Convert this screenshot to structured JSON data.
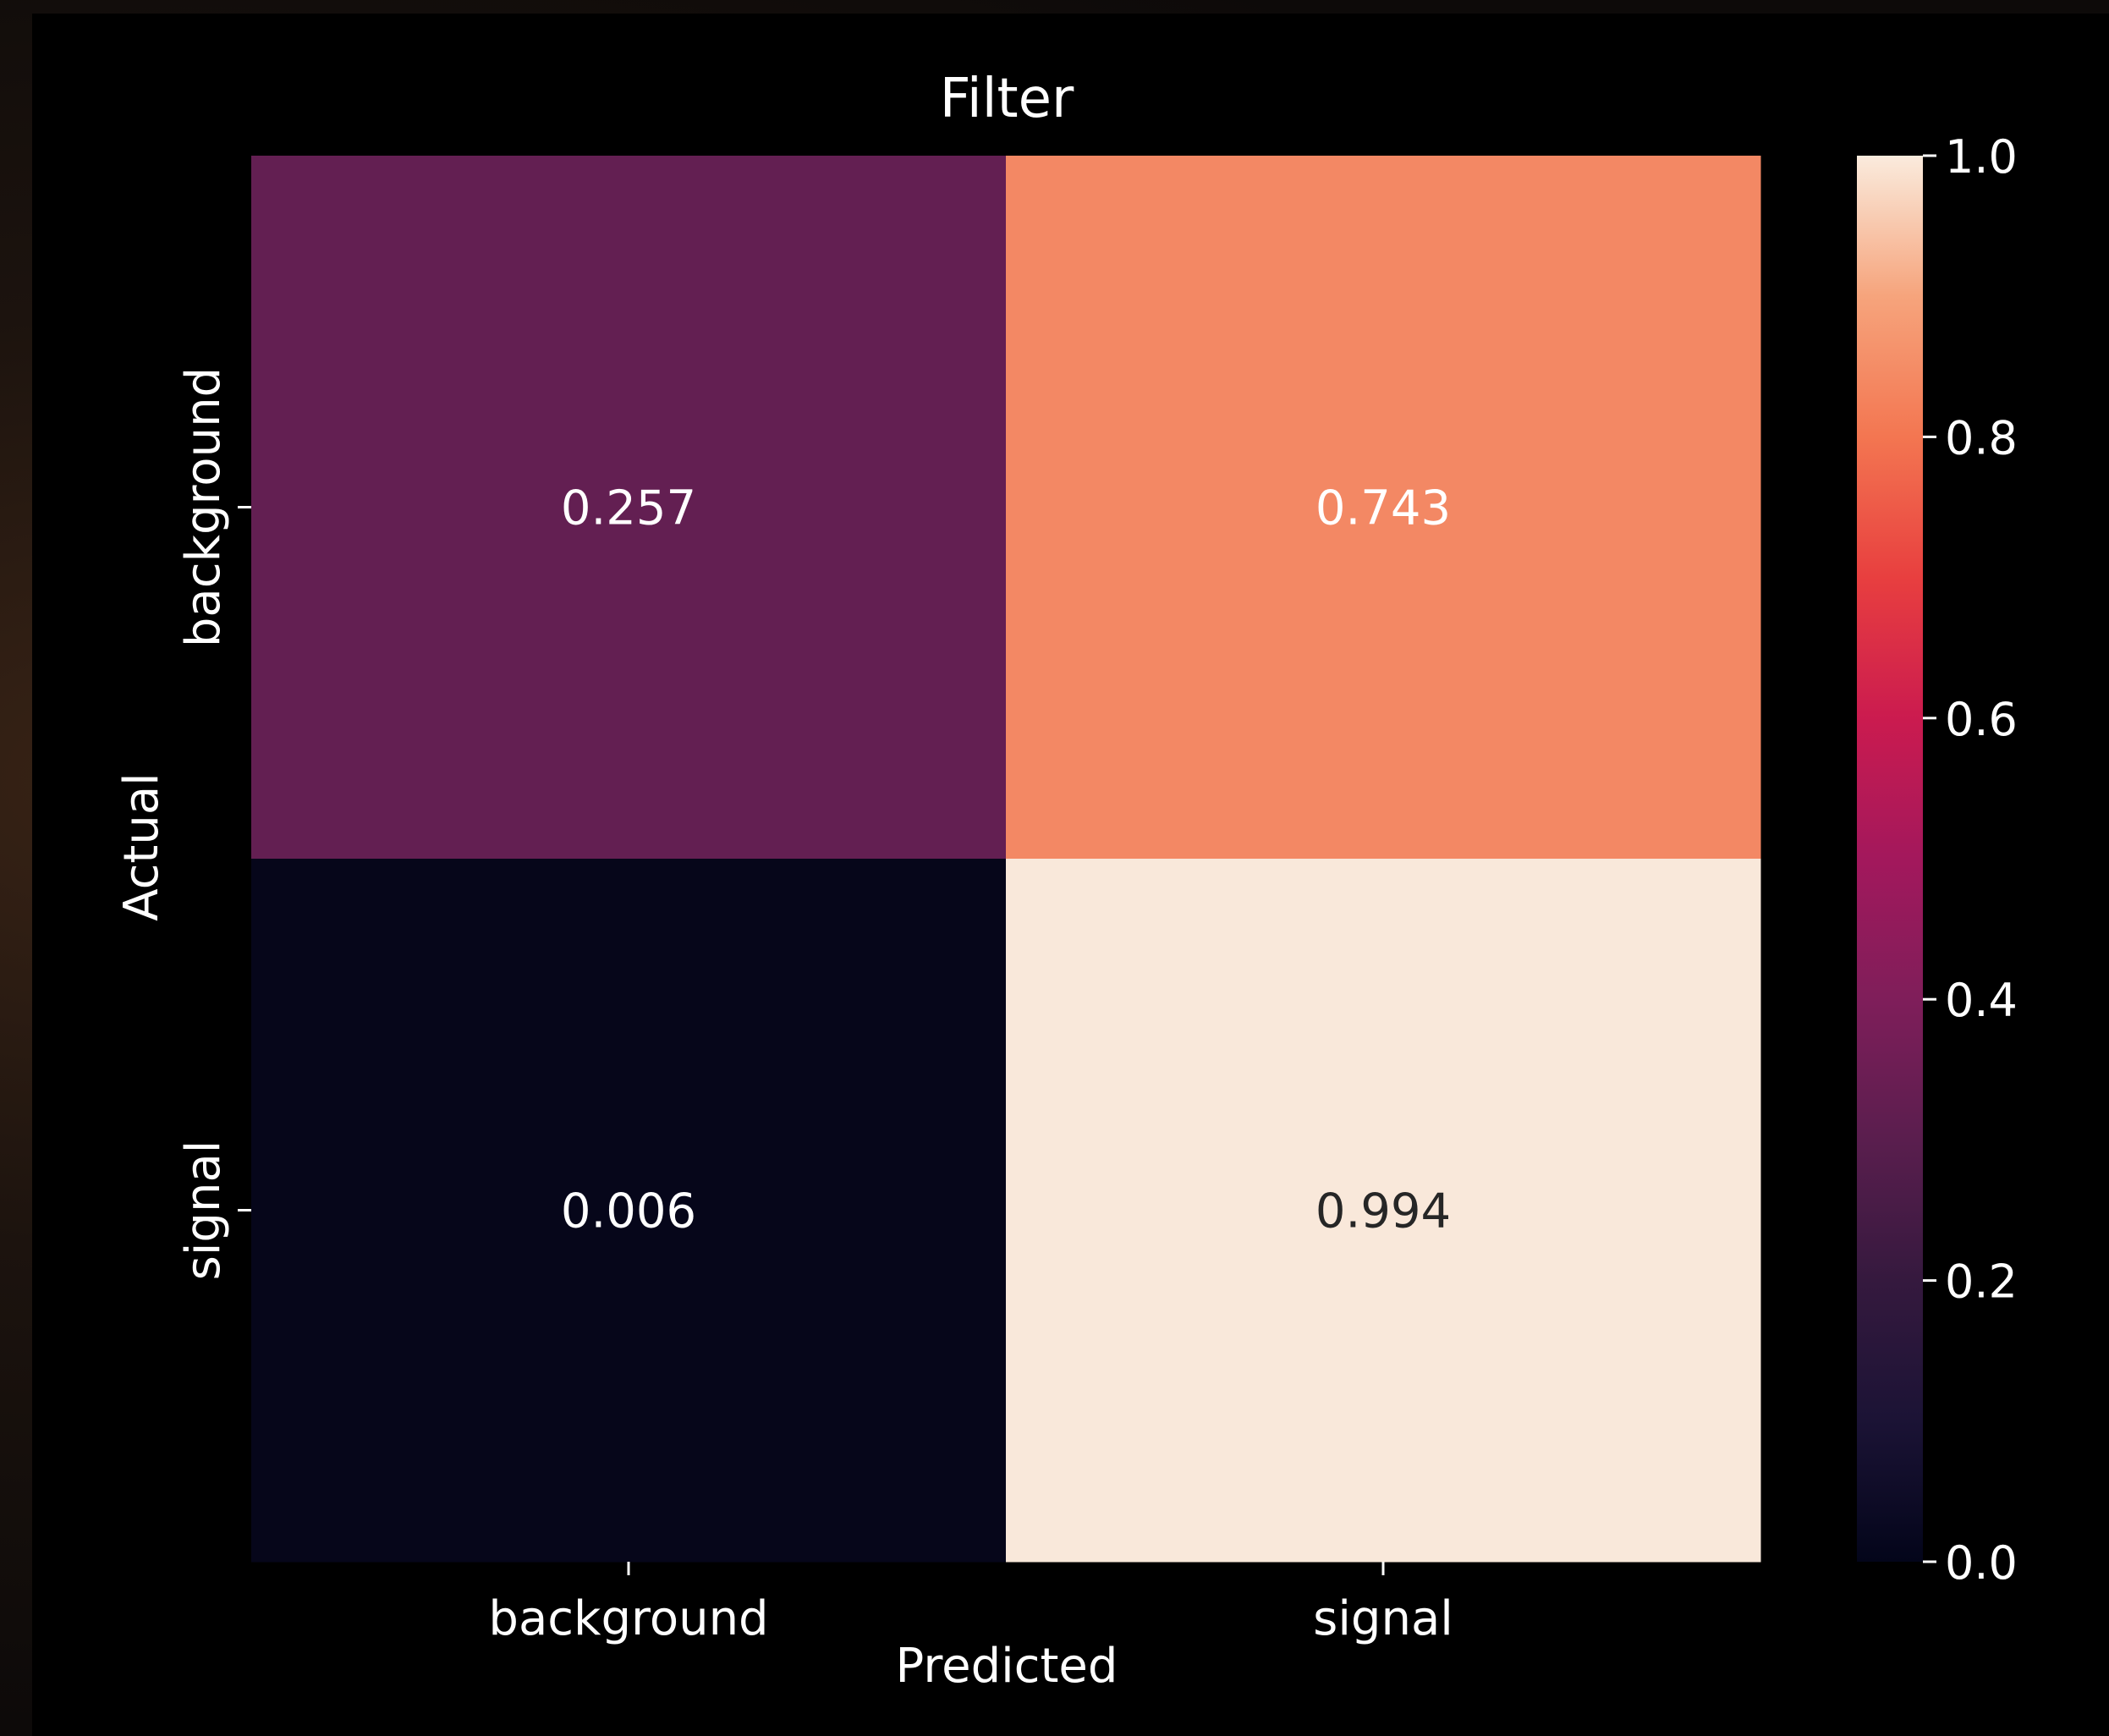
{
  "chart_data": {
    "type": "heatmap",
    "title": "Filter",
    "xlabel": "Predicted",
    "ylabel": "Actual",
    "x_categories": [
      "background",
      "signal"
    ],
    "y_categories": [
      "background",
      "signal"
    ],
    "values": [
      [
        0.257,
        0.743
      ],
      [
        0.006,
        0.994
      ]
    ],
    "value_labels": [
      [
        "0.257",
        "0.743"
      ],
      [
        "0.006",
        "0.994"
      ]
    ],
    "colorbar": {
      "min": 0.0,
      "max": 1.0,
      "ticks": [
        "0.0",
        "0.2",
        "0.4",
        "0.6",
        "0.8",
        "1.0"
      ],
      "colormap": "rocket"
    },
    "cell_colors": [
      [
        "#631f52",
        "#f38864"
      ],
      [
        "#06061a",
        "#f9e8da"
      ]
    ],
    "value_text_colors": [
      [
        "#ffffff",
        "#ffffff"
      ],
      [
        "#ffffff",
        "#262626"
      ]
    ],
    "colors": {
      "background": "#000000",
      "text": "#ffffff"
    }
  }
}
